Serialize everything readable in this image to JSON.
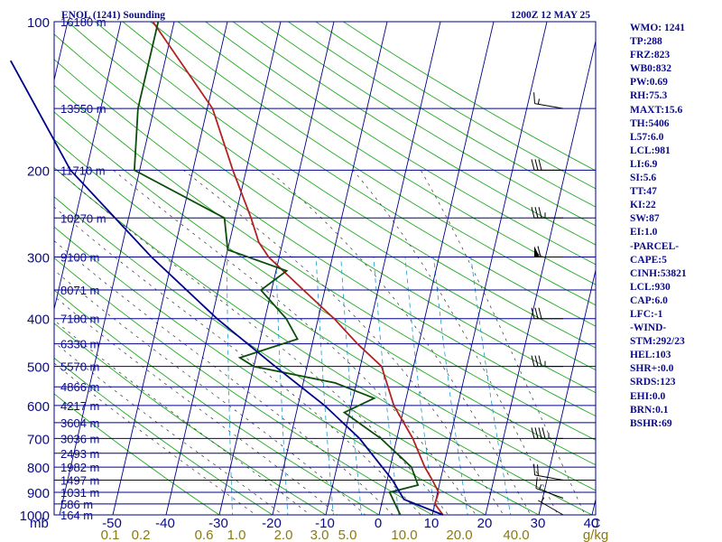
{
  "chart_data": {
    "type": "skew-t log-p sounding",
    "title": "ENOL (1241) Sounding",
    "valid_time": "1200Z 12 MAY 25",
    "pressure_axis": {
      "label": "mb",
      "ticks": [
        100,
        200,
        300,
        400,
        500,
        600,
        700,
        800,
        900,
        1000
      ],
      "range": [
        1000,
        100
      ],
      "scale": "log"
    },
    "temperature_axis": {
      "unit": "C",
      "ticks": [
        -50,
        -40,
        -30,
        -20,
        -10,
        0,
        10,
        20,
        30,
        40
      ],
      "skewed": true
    },
    "mixing_ratio_axis": {
      "unit": "g/kg",
      "ticks": [
        "0.1",
        "0.2",
        "0.6",
        "1.0",
        "2.0",
        "3.0",
        "5.0",
        "10.0",
        "20.0",
        "40.0"
      ]
    },
    "height_labels": [
      {
        "p": 100,
        "label": "16180 m"
      },
      {
        "p": 150,
        "label": "13550 m"
      },
      {
        "p": 200,
        "label": "11710 m"
      },
      {
        "p": 250,
        "label": "10270 m"
      },
      {
        "p": 300,
        "label": "9100 m"
      },
      {
        "p": 350,
        "label": "8071 m"
      },
      {
        "p": 400,
        "label": "7180 m"
      },
      {
        "p": 450,
        "label": "6330 m"
      },
      {
        "p": 500,
        "label": "5570 m"
      },
      {
        "p": 550,
        "label": "4866 m"
      },
      {
        "p": 600,
        "label": "4217 m"
      },
      {
        "p": 650,
        "label": "3604 m"
      },
      {
        "p": 700,
        "label": "3036 m"
      },
      {
        "p": 750,
        "label": "2493 m"
      },
      {
        "p": 800,
        "label": "1982 m"
      },
      {
        "p": 850,
        "label": "1497 m"
      },
      {
        "p": 900,
        "label": "1031 m"
      },
      {
        "p": 950,
        "label": "586 m"
      },
      {
        "p": 1000,
        "label": "164 m"
      }
    ],
    "series": [
      {
        "color": "#b22222",
        "points": [
          {
            "p": 1000,
            "t": 12.0
          },
          {
            "p": 950,
            "t": 10.0
          },
          {
            "p": 900,
            "t": 10.2
          },
          {
            "p": 850,
            "t": 8.5
          },
          {
            "p": 800,
            "t": 6.5
          },
          {
            "p": 700,
            "t": 3.0
          },
          {
            "p": 600,
            "t": -2.0
          },
          {
            "p": 500,
            "t": -6.0
          },
          {
            "p": 450,
            "t": -11.5
          },
          {
            "p": 400,
            "t": -17.0
          },
          {
            "p": 350,
            "t": -24.0
          },
          {
            "p": 300,
            "t": -32.0
          },
          {
            "p": 280,
            "t": -34.5
          },
          {
            "p": 250,
            "t": -37.0
          },
          {
            "p": 200,
            "t": -42.5
          },
          {
            "p": 150,
            "t": -49.0
          },
          {
            "p": 100,
            "t": -64.0
          }
        ]
      },
      {
        "color": "#0b4d0b",
        "points": [
          {
            "p": 1000,
            "td": 4.0
          },
          {
            "p": 900,
            "td": 1.0
          },
          {
            "p": 870,
            "td": 6.0
          },
          {
            "p": 800,
            "td": 4.0
          },
          {
            "p": 700,
            "td": -3.0
          },
          {
            "p": 620,
            "td": -11.0
          },
          {
            "p": 580,
            "td": -6.0
          },
          {
            "p": 540,
            "td": -14.0
          },
          {
            "p": 500,
            "td": -30.0
          },
          {
            "p": 480,
            "td": -33.0
          },
          {
            "p": 440,
            "td": -23.0
          },
          {
            "p": 400,
            "td": -26.0
          },
          {
            "p": 350,
            "td": -32.0
          },
          {
            "p": 320,
            "td": -28.0
          },
          {
            "p": 290,
            "td": -40.0
          },
          {
            "p": 250,
            "td": -42.0
          },
          {
            "p": 200,
            "td": -61.0
          },
          {
            "p": 150,
            "td": -63.0
          },
          {
            "p": 100,
            "td": -63.0
          }
        ]
      },
      {
        "color": "#00008b",
        "points": [
          {
            "p": 1000,
            "t": 12.0
          },
          {
            "p": 930,
            "t": 4.0
          },
          {
            "p": 850,
            "t": 1.0
          },
          {
            "p": 700,
            "t": -7.0
          },
          {
            "p": 600,
            "t": -15.0
          },
          {
            "p": 500,
            "t": -26.0
          },
          {
            "p": 400,
            "t": -39.0
          },
          {
            "p": 300,
            "t": -54.0
          },
          {
            "p": 200,
            "t": -73.0
          },
          {
            "p": 120,
            "t": -89.0
          }
        ]
      }
    ],
    "wind_barbs": [
      {
        "p": 1000,
        "dir": 300,
        "kt": 5
      },
      {
        "p": 925,
        "dir": 290,
        "kt": 15
      },
      {
        "p": 850,
        "dir": 280,
        "kt": 20
      },
      {
        "p": 700,
        "dir": 270,
        "kt": 45
      },
      {
        "p": 500,
        "dir": 270,
        "kt": 35
      },
      {
        "p": 400,
        "dir": 270,
        "kt": 30
      },
      {
        "p": 300,
        "dir": 270,
        "kt": 60
      },
      {
        "p": 250,
        "dir": 270,
        "kt": 35
      },
      {
        "p": 200,
        "dir": 270,
        "kt": 30
      },
      {
        "p": 150,
        "dir": 280,
        "kt": 15
      }
    ],
    "colors": {
      "isobar": "#00008b",
      "isotherm": "#00008b",
      "dry_adiabat": "#22aa22",
      "moist_adiabat": "#333333",
      "mixing_ratio": "#1a9acc",
      "axis_label": "#0b0b8c",
      "mixing_label": "#8a7a10"
    }
  },
  "indices": [
    "WMO: 1241",
    "TP:288",
    "FRZ:823",
    "WB0:832",
    "PW:0.69",
    "RH:75.3",
    "MAXT:15.6",
    "TH:5406",
    "L57:6.0",
    "LCL:981",
    "LI:6.9",
    "SI:5.6",
    "TT:47",
    "KI:22",
    "SW:87",
    "EI:1.0",
    "-PARCEL-",
    "CAPE:5",
    "CINH:53821",
    "LCL:930",
    "CAP:6.0",
    "LFC:-1",
    "-WIND-",
    "STM:292/23",
    "HEL:103",
    "SHR+:0.0",
    "SRDS:123",
    "EHI:0.0",
    "BRN:0.1",
    "BSHR:69"
  ]
}
